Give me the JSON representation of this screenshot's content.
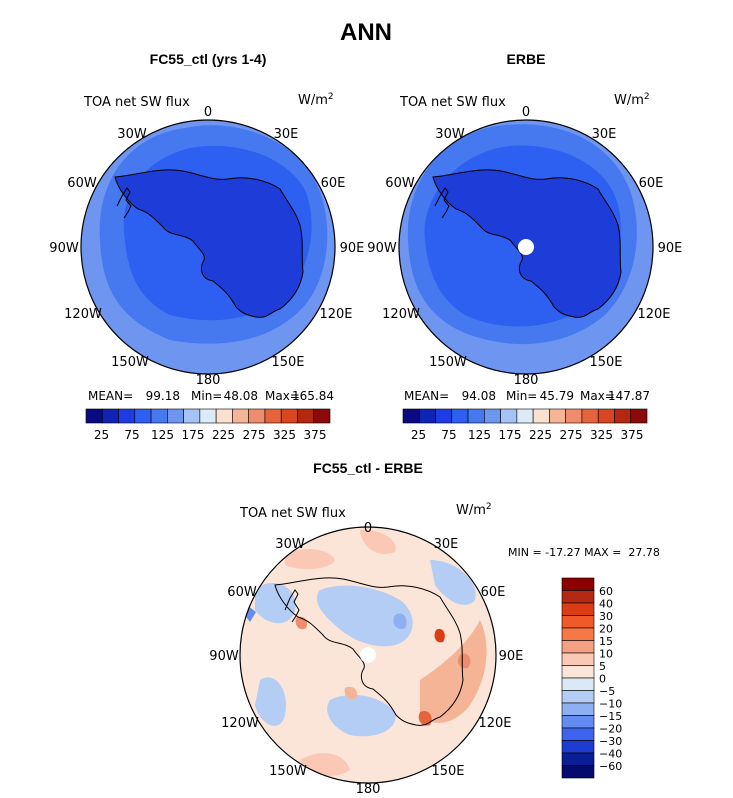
{
  "page": {
    "title": "ANN"
  },
  "panels": [
    {
      "id": "model",
      "title": "FC55_ctl (yrs 1-4)",
      "left_label": "TOA net SW flux",
      "units_base": "W/m",
      "units_exp": "2",
      "stats": {
        "mean_label": "MEAN=",
        "mean": "99.18",
        "min_label": "Min=",
        "min": "48.08",
        "max_label": "Max=",
        "max": "165.84"
      },
      "lon_labels": [
        "0",
        "30E",
        "60E",
        "90E",
        "120E",
        "150E",
        "180",
        "150W",
        "120W",
        "90W",
        "60W",
        "30W"
      ],
      "colorbar_ticks": [
        "25",
        "75",
        "125",
        "175",
        "225",
        "275",
        "325",
        "375"
      ]
    },
    {
      "id": "obs",
      "title": "ERBE",
      "left_label": "TOA net SW flux",
      "units_base": "W/m",
      "units_exp": "2",
      "stats": {
        "mean_label": "MEAN=",
        "mean": "94.08",
        "min_label": "Min=",
        "min": "45.79",
        "max_label": "Max=",
        "max": "147.87"
      },
      "lon_labels": [
        "0",
        "30E",
        "60E",
        "90E",
        "120E",
        "150E",
        "180",
        "150W",
        "120W",
        "90W",
        "60W",
        "30W"
      ],
      "colorbar_ticks": [
        "25",
        "75",
        "125",
        "175",
        "225",
        "275",
        "325",
        "375"
      ]
    },
    {
      "id": "diff",
      "title": "FC55_ctl - ERBE",
      "left_label": "TOA net SW flux",
      "units_base": "W/m",
      "units_exp": "2",
      "stats_line": "MIN = -17.27 MAX =  27.78",
      "lon_labels": [
        "0",
        "30E",
        "60E",
        "90E",
        "120E",
        "150E",
        "180",
        "150W",
        "120W",
        "90W",
        "60W",
        "30W"
      ],
      "colorbar_ticks": [
        "60",
        "40",
        "30",
        "20",
        "15",
        "10",
        "5",
        "0",
        "−5",
        "−10",
        "−15",
        "−20",
        "−30",
        "−40",
        "−60"
      ]
    }
  ],
  "colors": {
    "abs_scale": [
      "#0a0a82",
      "#0f23b4",
      "#1e3ce6",
      "#2d5ff0",
      "#4678f0",
      "#6e96f0",
      "#a5c3f5",
      "#dceaf8",
      "#fce0cf",
      "#f5b496",
      "#f08c6e",
      "#e6643c",
      "#d7461e",
      "#b42810",
      "#8c0a0a"
    ],
    "diff_scale": [
      "#8c0000",
      "#b42814",
      "#dc3c14",
      "#f05a28",
      "#f57846",
      "#f5a082",
      "#fac8b4",
      "#fbe5d8",
      "#dce8f5",
      "#b4cdf5",
      "#8cb0f0",
      "#648cf0",
      "#3c64f0",
      "#1e3cd2",
      "#0a1e96",
      "#050a6e"
    ],
    "land_model": "#1e3cd8",
    "ocean_inner_model": "#2d50e8",
    "ring_model": "#4678f0",
    "outer_model": "#6e96f0",
    "land_obs": "#1e3cd8",
    "ocean_inner_obs": "#2d50e8",
    "ring_obs": "#4678f0",
    "outer_obs": "#6e96f0",
    "diff_base": "#fbe5d8",
    "coast": "#000000"
  }
}
